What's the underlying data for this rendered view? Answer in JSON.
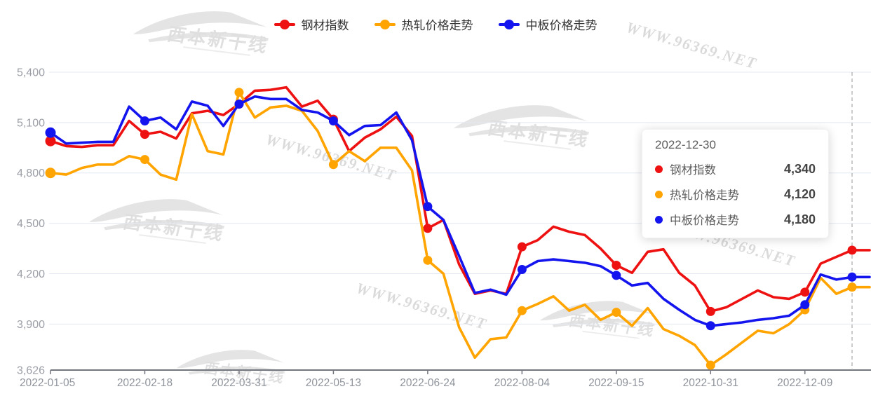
{
  "legend": {
    "items": [
      {
        "label": "钢材指数"
      },
      {
        "label": "热轧价格走势"
      },
      {
        "label": "中板价格走势"
      }
    ]
  },
  "tooltip": {
    "date": "2022-12-30",
    "rows": [
      {
        "label": "钢材指数",
        "value": "4,340"
      },
      {
        "label": "热轧价格走势",
        "value": "4,120"
      },
      {
        "label": "中板价格走势",
        "value": "4,180"
      }
    ]
  },
  "watermarks": {
    "site": "WWW.96369.NET",
    "logo": "西本新干线"
  },
  "chart_data": {
    "type": "line",
    "x_axis": {
      "tick_labels": [
        "2022-01-05",
        "2022-02-18",
        "2022-03-31",
        "2022-05-13",
        "2022-06-24",
        "2022-08-04",
        "2022-09-15",
        "2022-10-31",
        "2022-12-09"
      ],
      "tick_indices": [
        0,
        6,
        12,
        18,
        24,
        30,
        36,
        42,
        48
      ],
      "point_count": 52
    },
    "y_axis": {
      "tick_labels": [
        "5,400",
        "5,100",
        "4,800",
        "4,500",
        "4,200",
        "3,900",
        "3,626"
      ],
      "tick_values": [
        5400,
        5100,
        4800,
        4500,
        4200,
        3900,
        3626
      ],
      "min": 3626,
      "max": 5400
    },
    "grid": true,
    "legend_position": "top",
    "highlight": {
      "index": 51,
      "date": "2022-12-30"
    },
    "marker_indices": [
      0,
      6,
      12,
      18,
      24,
      30,
      36,
      42,
      48,
      51
    ],
    "series": [
      {
        "name": "钢材指数",
        "color": "#ee1111",
        "end_value": 4340,
        "values": [
          4990,
          4960,
          4955,
          4965,
          4965,
          5110,
          5030,
          5045,
          5005,
          5155,
          5170,
          5145,
          5210,
          5290,
          5295,
          5310,
          5195,
          5230,
          5120,
          4930,
          5010,
          5060,
          5135,
          5020,
          4470,
          4520,
          4255,
          4080,
          4100,
          4080,
          4360,
          4400,
          4480,
          4450,
          4430,
          4350,
          4250,
          4205,
          4330,
          4345,
          4205,
          4130,
          3975,
          4000,
          4050,
          4100,
          4060,
          4050,
          4090,
          4260,
          4300,
          4340
        ]
      },
      {
        "name": "热轧价格走势",
        "color": "#ffa400",
        "end_value": 4120,
        "values": [
          4800,
          4790,
          4830,
          4850,
          4850,
          4900,
          4880,
          4790,
          4760,
          5150,
          4930,
          4910,
          5280,
          5130,
          5190,
          5200,
          5170,
          5050,
          4850,
          4930,
          4870,
          4950,
          4950,
          4815,
          4280,
          4200,
          3880,
          3700,
          3810,
          3820,
          3980,
          4020,
          4065,
          3980,
          4015,
          3925,
          3970,
          3890,
          3995,
          3870,
          3830,
          3775,
          3655,
          3720,
          3790,
          3860,
          3845,
          3900,
          3985,
          4175,
          4080,
          4120
        ]
      },
      {
        "name": "中板价格走势",
        "color": "#1414ee",
        "end_value": 4180,
        "values": [
          5040,
          4975,
          4980,
          4985,
          4985,
          5195,
          5110,
          5130,
          5060,
          5225,
          5200,
          5080,
          5210,
          5255,
          5240,
          5240,
          5175,
          5160,
          5110,
          5025,
          5080,
          5085,
          5160,
          4995,
          4600,
          4520,
          4305,
          4085,
          4105,
          4075,
          4225,
          4275,
          4285,
          4275,
          4265,
          4245,
          4190,
          4130,
          4145,
          4050,
          3985,
          3925,
          3890,
          3900,
          3910,
          3925,
          3935,
          3950,
          4015,
          4195,
          4165,
          4180
        ]
      }
    ]
  }
}
